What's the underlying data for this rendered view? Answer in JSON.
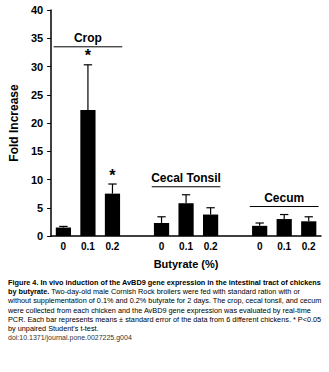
{
  "chart_data": {
    "type": "bar",
    "categories": [
      "0",
      "0.1",
      "0.2",
      null,
      "0",
      "0.1",
      "0.2",
      null,
      "0",
      "0.1",
      "0.2"
    ],
    "values": [
      1.5,
      22.3,
      7.5,
      null,
      2.3,
      5.8,
      3.8,
      null,
      1.8,
      3.0,
      2.6
    ],
    "errors": [
      0.2,
      8.0,
      1.7,
      null,
      1.1,
      1.5,
      1.2,
      null,
      0.5,
      0.8,
      0.8
    ],
    "significant": [
      false,
      true,
      true,
      null,
      false,
      false,
      false,
      null,
      false,
      false,
      false
    ],
    "significance_label": "*",
    "groups": [
      "Crop",
      "Cecal Tonsil",
      "Cecum"
    ],
    "x_label": "Butyrate (%)",
    "y_label": "Fold Increase",
    "color": "#000000",
    "ylim": [
      0,
      40
    ],
    "yticks": [
      0,
      5,
      10,
      15,
      20,
      25,
      30,
      35,
      40
    ],
    "grid": false
  },
  "caption": {
    "title": "Figure 4. In vivo induction of the AvBD9 gene expression in the intestinal tract of chickens by butyrate.",
    "text": "Two-day-old male Cornish Rock broilers were fed with standard ration with or without supplementation of 0.1% and 0.2% butyrate for 2 days. The crop, cecal tonsil, and cecum were collected from each chicken and the AvBD9 gene expression was evaluated by real-time PCR. Each bar represents means ± standard error of the data from 6 different chickens. * P<0.05 by unpaired Student's t-test.",
    "doi": "doi:10.1371/journal.pone.0027225.g004"
  }
}
